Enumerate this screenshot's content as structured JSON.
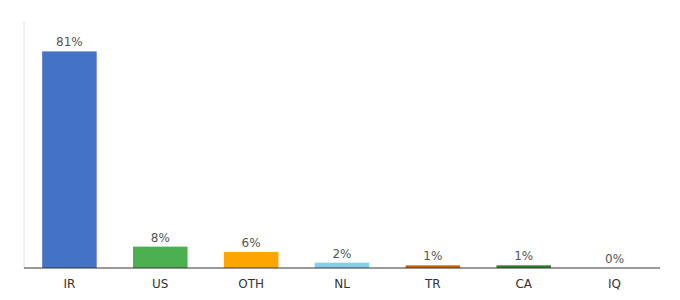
{
  "chart_data": {
    "type": "bar",
    "categories": [
      "IR",
      "US",
      "OTH",
      "NL",
      "TR",
      "CA",
      "IQ"
    ],
    "values": [
      81,
      8,
      6,
      2,
      1,
      1,
      0
    ],
    "value_labels": [
      "81%",
      "8%",
      "6%",
      "2%",
      "1%",
      "1%",
      "0%"
    ],
    "colors": [
      "#4472C4",
      "#4CAF50",
      "#FFA500",
      "#87CEEB",
      "#CC6600",
      "#2E7D32",
      "#cccccc"
    ],
    "ylim": [
      0,
      92
    ],
    "data_labels": true,
    "tick_labels": "x",
    "grid": false
  }
}
